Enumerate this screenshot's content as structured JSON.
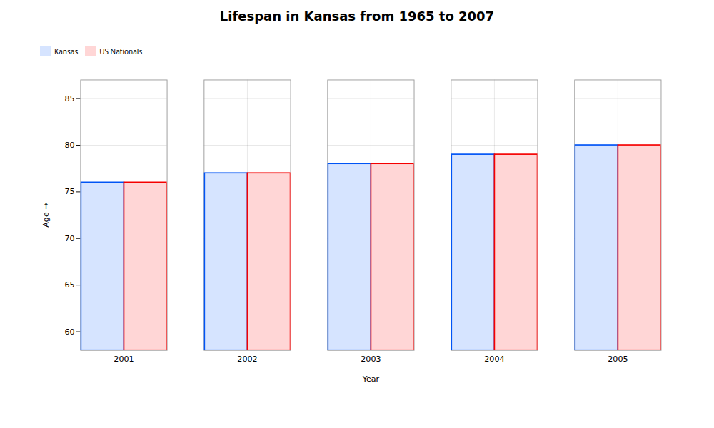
{
  "chart_data": {
    "type": "bar",
    "title": "Lifespan in Kansas from 1965 to 2007",
    "xlabel": "Year",
    "ylabel": "Age",
    "categories": [
      "2001",
      "2002",
      "2003",
      "2004",
      "2005"
    ],
    "series": [
      {
        "name": "Kansas",
        "color": "#d6e4ff",
        "values": [
          76,
          77,
          78,
          79,
          80
        ]
      },
      {
        "name": "US Nationals",
        "color": "#ffd6d6",
        "values": [
          76,
          77,
          78,
          79,
          80
        ]
      }
    ],
    "ylim": [
      58,
      87
    ],
    "yticks": [
      60,
      65,
      70,
      75,
      80,
      85
    ],
    "grid": true,
    "legend": "top"
  }
}
